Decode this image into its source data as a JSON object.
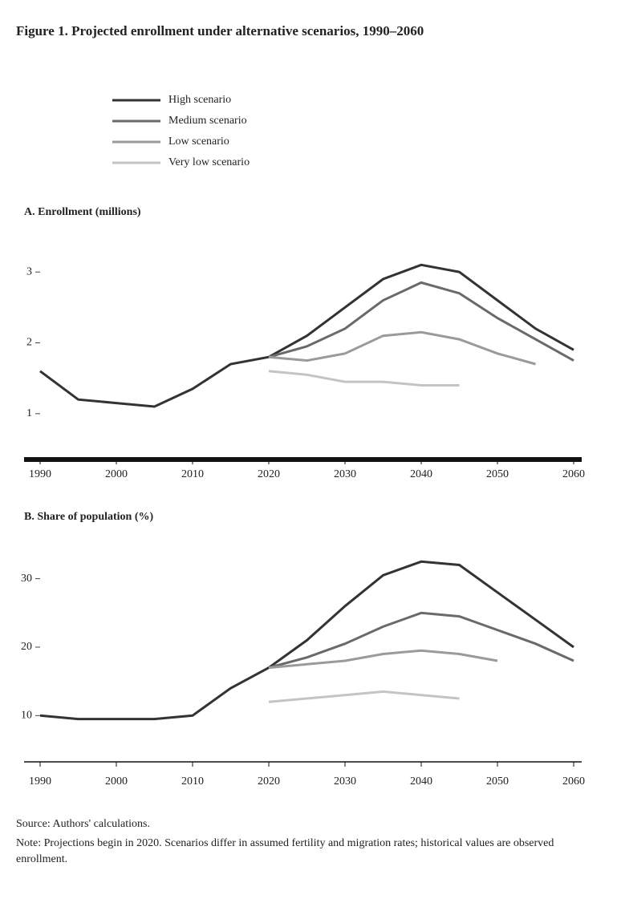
{
  "figure": {
    "title": "Figure 1. Projected enrollment under alternative scenarios, 1990–2060",
    "notes": [
      "Source: Authors' calculations.",
      "Note: Projections begin in 2020. Scenarios differ in assumed fertility and migration rates; historical values are observed enrollment."
    ]
  },
  "chart_data": [
    {
      "type": "line",
      "title": "A. Enrollment (millions)",
      "x": [
        1990,
        1995,
        2000,
        2005,
        2010,
        2015,
        2020,
        2025,
        2030,
        2035,
        2040,
        2045,
        2050,
        2055,
        2060
      ],
      "xlim": [
        1990,
        2060
      ],
      "xticks": [
        1990,
        2000,
        2010,
        2020,
        2030,
        2040,
        2050,
        2060
      ],
      "ylim": [
        0.5,
        3.5
      ],
      "yticks": [
        1,
        2,
        3
      ],
      "series": [
        {
          "name": "High scenario",
          "color": "#333333",
          "values": [
            1.6,
            1.2,
            1.15,
            1.1,
            1.35,
            1.7,
            1.8,
            2.1,
            2.5,
            2.9,
            3.1,
            3.0,
            2.6,
            2.2,
            1.9
          ]
        },
        {
          "name": "Medium scenario",
          "color": "#6a6a6a",
          "values": [
            null,
            null,
            null,
            null,
            null,
            null,
            1.8,
            1.95,
            2.2,
            2.6,
            2.85,
            2.7,
            2.35,
            2.05,
            1.75
          ]
        },
        {
          "name": "Low scenario",
          "color": "#9a9a9a",
          "values": [
            null,
            null,
            null,
            null,
            null,
            null,
            1.8,
            1.75,
            1.85,
            2.1,
            2.15,
            2.05,
            1.85,
            1.7,
            null
          ]
        },
        {
          "name": "Very low scenario",
          "color": "#c4c4c4",
          "values": [
            null,
            null,
            null,
            null,
            null,
            null,
            1.6,
            1.55,
            1.45,
            1.45,
            1.4,
            1.4,
            null,
            null,
            null
          ]
        }
      ]
    },
    {
      "type": "line",
      "title": "B. Share of population (%)",
      "x": [
        1990,
        1995,
        2000,
        2005,
        2010,
        2015,
        2020,
        2025,
        2030,
        2035,
        2040,
        2045,
        2050,
        2055,
        2060
      ],
      "xlim": [
        1990,
        2060
      ],
      "xticks": [
        1990,
        2000,
        2010,
        2020,
        2030,
        2040,
        2050,
        2060
      ],
      "ylim": [
        5,
        33
      ],
      "yticks": [
        10,
        20,
        30
      ],
      "series": [
        {
          "color": "#333333",
          "values": [
            10,
            9.5,
            9.5,
            9.5,
            10,
            14,
            17,
            21,
            26,
            30.5,
            32.5,
            32,
            28,
            24,
            20
          ]
        },
        {
          "color": "#6a6a6a",
          "values": [
            null,
            null,
            null,
            null,
            null,
            null,
            17,
            18.5,
            20.5,
            23,
            25,
            24.5,
            22.5,
            20.5,
            18
          ]
        },
        {
          "color": "#9a9a9a",
          "values": [
            null,
            null,
            null,
            null,
            null,
            null,
            17,
            17.5,
            18,
            19,
            19.5,
            19,
            18,
            null,
            null
          ]
        },
        {
          "color": "#c4c4c4",
          "values": [
            null,
            null,
            null,
            null,
            null,
            null,
            12,
            12.5,
            13,
            13.5,
            13,
            12.5,
            null,
            null,
            null
          ]
        }
      ]
    }
  ]
}
